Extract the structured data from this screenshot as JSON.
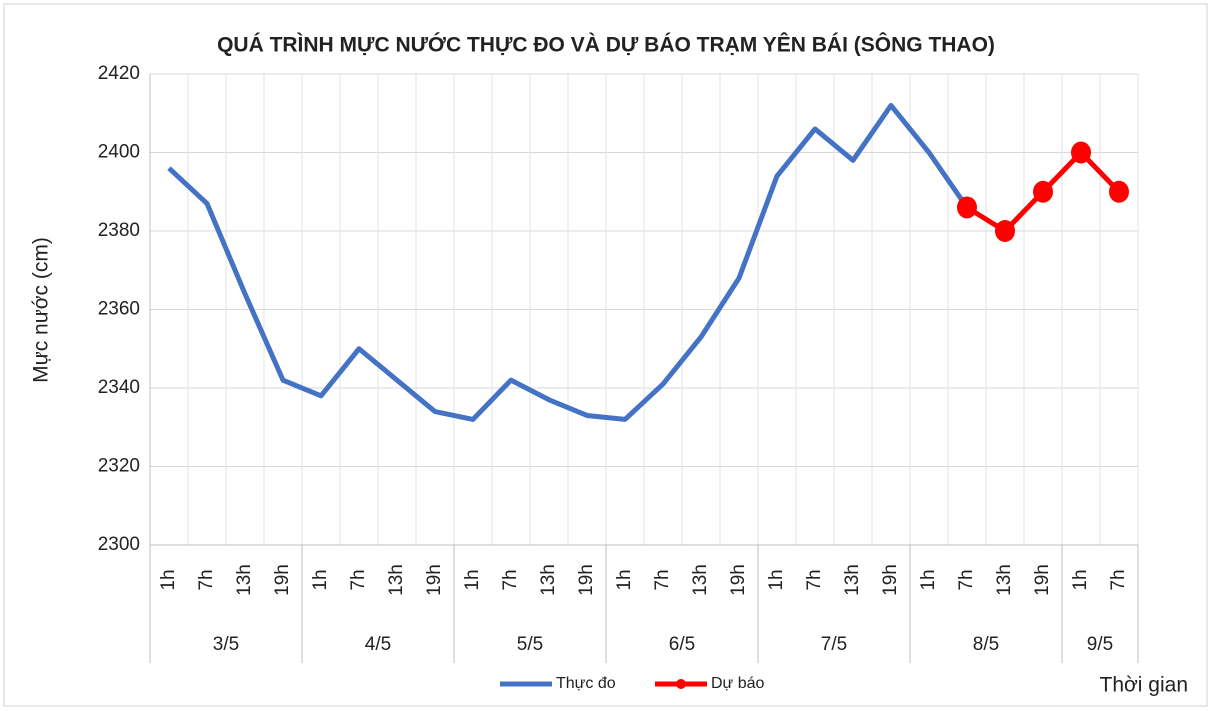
{
  "chart_data": {
    "type": "line",
    "title": "QUÁ TRÌNH MỰC NƯỚC THỰC ĐO VÀ DỰ BÁO TRẠM YÊN BÁI (SÔNG THAO)",
    "y_label": "Mực nước (cm)",
    "x_label": "Thời gian",
    "groups": [
      {
        "label": "3/5",
        "hours": [
          "1h",
          "7h",
          "13h",
          "19h"
        ]
      },
      {
        "label": "4/5",
        "hours": [
          "1h",
          "7h",
          "13h",
          "19h"
        ]
      },
      {
        "label": "5/5",
        "hours": [
          "1h",
          "7h",
          "13h",
          "19h"
        ]
      },
      {
        "label": "6/5",
        "hours": [
          "1h",
          "7h",
          "13h",
          "19h"
        ]
      },
      {
        "label": "7/5",
        "hours": [
          "1h",
          "7h",
          "13h",
          "19h"
        ]
      },
      {
        "label": "8/5",
        "hours": [
          "1h",
          "7h",
          "13h",
          "19h"
        ]
      },
      {
        "label": "9/5",
        "hours": [
          "1h",
          "7h"
        ]
      }
    ],
    "series": [
      {
        "name": "Thực đo",
        "color": "#4472c4",
        "values": [
          2396,
          2387,
          2364,
          2342,
          2338,
          2350,
          2342,
          2334,
          2332,
          2342,
          2337,
          2333,
          2332,
          2341,
          2353,
          2368,
          2394,
          2406,
          2398,
          2412,
          2400,
          2386,
          null,
          null,
          null,
          null
        ]
      },
      {
        "name": "Dự báo",
        "color": "#ff0000",
        "marker": true,
        "values": [
          null,
          null,
          null,
          null,
          null,
          null,
          null,
          null,
          null,
          null,
          null,
          null,
          null,
          null,
          null,
          null,
          null,
          null,
          null,
          null,
          null,
          2386,
          2380,
          2390,
          2400,
          2390
        ]
      }
    ],
    "ylim": [
      2300,
      2420
    ],
    "yticks": [
      2300,
      2320,
      2340,
      2360,
      2380,
      2400,
      2420
    ],
    "grid": true
  }
}
